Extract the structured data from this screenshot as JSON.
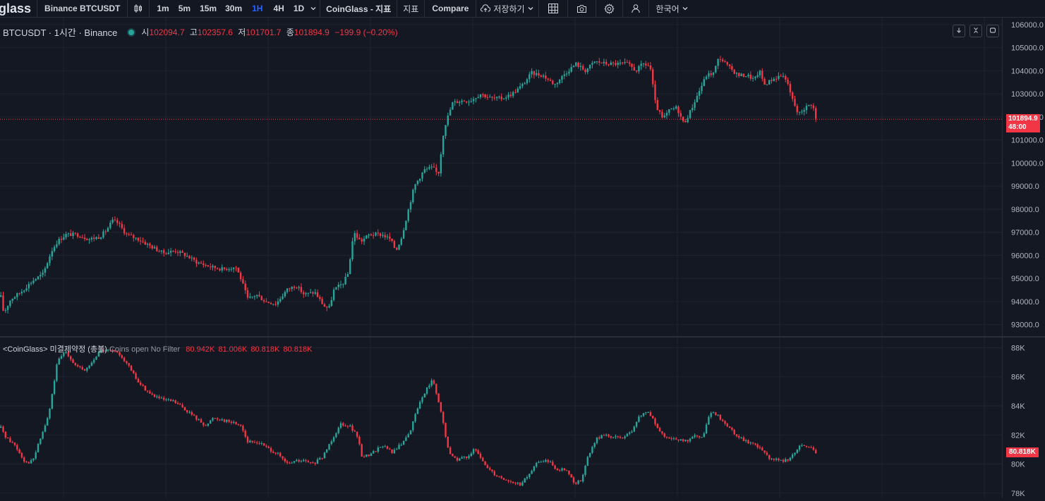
{
  "toolbar": {
    "logo": "glass",
    "symbol": "Binance BTCUSDT",
    "chart_type_icon": "candle-icon",
    "intervals": [
      "1m",
      "5m",
      "15m",
      "30m",
      "1H",
      "4H",
      "1D"
    ],
    "active_interval": "1H",
    "indicator_menu": "CoinGlass - 지표",
    "indicators": "지표",
    "compare": "Compare",
    "save": "저장하기",
    "language": "한국어"
  },
  "price_pane": {
    "symbol_title": "BTCUSDT · 1시간 · Binance",
    "open_label": "시",
    "open": "102094.7",
    "high_label": "고",
    "high": "102357.6",
    "low_label": "저",
    "low": "101701.7",
    "close_label": "종",
    "close": "101894.9",
    "change": "−199.9 (−0.20%)",
    "last_price_tag": "101894.9",
    "countdown_tag": "48:00"
  },
  "oi_pane": {
    "name": "<CoinGlass> 미결제약정 (총볼)",
    "filter": "Coins open No Filter",
    "values": [
      "80.942K",
      "81.006K",
      "80.818K",
      "80.818K"
    ],
    "last_tag": "80.818K"
  },
  "colors": {
    "up": "#26a69a",
    "down": "#f23645",
    "background": "#141823",
    "grid": "#1f2330",
    "accent": "#2962ff"
  },
  "chart_data": [
    {
      "type": "candlestick",
      "title": "BTCUSDT · 1시간 · Binance",
      "ylim": [
        92500,
        106300
      ],
      "y_ticks": [
        93000,
        94000,
        95000,
        96000,
        97000,
        98000,
        99000,
        100000,
        101000,
        102000,
        103000,
        104000,
        105000,
        106000
      ],
      "y_tick_labels": [
        "93000.0",
        "94000.0",
        "95000.0",
        "96000.0",
        "97000.0",
        "98000.0",
        "99000.0",
        "100000.0",
        "101000.0",
        "102000.0",
        "103000.0",
        "104000.0",
        "105000.0",
        "106000.0"
      ],
      "last_price": 101894.9,
      "grid": true,
      "close_path": [
        [
          0,
          94200
        ],
        [
          4,
          93500
        ],
        [
          14,
          94100
        ],
        [
          28,
          94400
        ],
        [
          45,
          94900
        ],
        [
          60,
          95200
        ],
        [
          72,
          96200
        ],
        [
          80,
          96600
        ],
        [
          92,
          96900
        ],
        [
          108,
          96900
        ],
        [
          125,
          96700
        ],
        [
          140,
          96800
        ],
        [
          150,
          97100
        ],
        [
          158,
          97500
        ],
        [
          166,
          97400
        ],
        [
          178,
          96900
        ],
        [
          195,
          96700
        ],
        [
          212,
          96400
        ],
        [
          230,
          96100
        ],
        [
          248,
          96200
        ],
        [
          262,
          96000
        ],
        [
          278,
          95700
        ],
        [
          298,
          95500
        ],
        [
          315,
          95400
        ],
        [
          333,
          95500
        ],
        [
          340,
          95000
        ],
        [
          350,
          94100
        ],
        [
          362,
          94300
        ],
        [
          375,
          94000
        ],
        [
          390,
          93900
        ],
        [
          405,
          94500
        ],
        [
          418,
          94700
        ],
        [
          430,
          94300
        ],
        [
          445,
          94400
        ],
        [
          458,
          93800
        ],
        [
          465,
          93700
        ],
        [
          472,
          94500
        ],
        [
          485,
          94800
        ],
        [
          492,
          95200
        ],
        [
          500,
          97000
        ],
        [
          510,
          96600
        ],
        [
          522,
          96900
        ],
        [
          540,
          96900
        ],
        [
          552,
          96700
        ],
        [
          560,
          96200
        ],
        [
          568,
          96800
        ],
        [
          576,
          97800
        ],
        [
          586,
          99000
        ],
        [
          600,
          99700
        ],
        [
          612,
          99800
        ],
        [
          620,
          99500
        ],
        [
          628,
          101500
        ],
        [
          640,
          102600
        ],
        [
          652,
          102700
        ],
        [
          665,
          102700
        ],
        [
          680,
          103000
        ],
        [
          695,
          102800
        ],
        [
          710,
          102800
        ],
        [
          725,
          103000
        ],
        [
          740,
          103400
        ],
        [
          752,
          103900
        ],
        [
          768,
          103800
        ],
        [
          785,
          103400
        ],
        [
          800,
          103900
        ],
        [
          815,
          104300
        ],
        [
          828,
          104000
        ],
        [
          842,
          104400
        ],
        [
          858,
          104300
        ],
        [
          872,
          104300
        ],
        [
          888,
          104300
        ],
        [
          900,
          104000
        ],
        [
          910,
          104300
        ],
        [
          920,
          104200
        ],
        [
          928,
          102500
        ],
        [
          938,
          101900
        ],
        [
          948,
          102300
        ],
        [
          958,
          102400
        ],
        [
          968,
          101700
        ],
        [
          978,
          102300
        ],
        [
          988,
          103000
        ],
        [
          1000,
          103800
        ],
        [
          1010,
          103900
        ],
        [
          1018,
          104600
        ],
        [
          1030,
          104200
        ],
        [
          1045,
          103800
        ],
        [
          1058,
          103800
        ],
        [
          1068,
          103600
        ],
        [
          1075,
          104000
        ],
        [
          1082,
          103400
        ],
        [
          1092,
          103600
        ],
        [
          1105,
          103800
        ],
        [
          1112,
          103700
        ],
        [
          1120,
          102900
        ],
        [
          1130,
          102100
        ],
        [
          1140,
          102400
        ],
        [
          1150,
          102600
        ],
        [
          1155,
          101900
        ]
      ]
    },
    {
      "type": "candlestick",
      "title": "<CoinGlass> 미결제약정 (총볼)",
      "ylim": [
        77700,
        88700
      ],
      "y_ticks": [
        78000,
        80000,
        82000,
        84000,
        86000,
        88000
      ],
      "y_tick_labels": [
        "78K",
        "80K",
        "82K",
        "84K",
        "86K",
        "88K"
      ],
      "last_value": 80818,
      "grid": true,
      "close_path": [
        [
          0,
          82500
        ],
        [
          8,
          81800
        ],
        [
          20,
          81300
        ],
        [
          35,
          80100
        ],
        [
          45,
          80200
        ],
        [
          55,
          81600
        ],
        [
          68,
          83400
        ],
        [
          80,
          87000
        ],
        [
          92,
          87800
        ],
        [
          105,
          86800
        ],
        [
          118,
          86400
        ],
        [
          128,
          86900
        ],
        [
          140,
          87800
        ],
        [
          155,
          87800
        ],
        [
          170,
          87500
        ],
        [
          180,
          86800
        ],
        [
          195,
          85600
        ],
        [
          212,
          84800
        ],
        [
          230,
          84400
        ],
        [
          245,
          84300
        ],
        [
          260,
          83800
        ],
        [
          278,
          83100
        ],
        [
          292,
          82600
        ],
        [
          300,
          83200
        ],
        [
          310,
          83100
        ],
        [
          325,
          82900
        ],
        [
          340,
          82700
        ],
        [
          350,
          81500
        ],
        [
          365,
          81500
        ],
        [
          378,
          81100
        ],
        [
          392,
          80700
        ],
        [
          405,
          80000
        ],
        [
          418,
          80200
        ],
        [
          430,
          80200
        ],
        [
          442,
          80000
        ],
        [
          455,
          80400
        ],
        [
          468,
          81600
        ],
        [
          482,
          82800
        ],
        [
          495,
          82600
        ],
        [
          505,
          81900
        ],
        [
          512,
          80500
        ],
        [
          525,
          80700
        ],
        [
          540,
          81300
        ],
        [
          555,
          80800
        ],
        [
          570,
          81500
        ],
        [
          582,
          82500
        ],
        [
          590,
          83800
        ],
        [
          600,
          84900
        ],
        [
          612,
          85800
        ],
        [
          625,
          83300
        ],
        [
          635,
          80700
        ],
        [
          648,
          80300
        ],
        [
          660,
          80500
        ],
        [
          672,
          81000
        ],
        [
          685,
          80000
        ],
        [
          700,
          79300
        ],
        [
          712,
          79000
        ],
        [
          725,
          78700
        ],
        [
          738,
          78600
        ],
        [
          750,
          79400
        ],
        [
          762,
          80200
        ],
        [
          775,
          80200
        ],
        [
          790,
          79600
        ],
        [
          800,
          79700
        ],
        [
          812,
          78700
        ],
        [
          822,
          78800
        ],
        [
          832,
          80500
        ],
        [
          845,
          81800
        ],
        [
          858,
          82000
        ],
        [
          870,
          81800
        ],
        [
          885,
          81900
        ],
        [
          895,
          82200
        ],
        [
          905,
          83300
        ],
        [
          918,
          83600
        ],
        [
          930,
          82500
        ],
        [
          942,
          81700
        ],
        [
          955,
          81800
        ],
        [
          968,
          81500
        ],
        [
          982,
          81900
        ],
        [
          995,
          81800
        ],
        [
          1005,
          83500
        ],
        [
          1015,
          83400
        ],
        [
          1028,
          82700
        ],
        [
          1040,
          82100
        ],
        [
          1055,
          81600
        ],
        [
          1068,
          81300
        ],
        [
          1080,
          81000
        ],
        [
          1090,
          80400
        ],
        [
          1105,
          80200
        ],
        [
          1120,
          80400
        ],
        [
          1130,
          81200
        ],
        [
          1140,
          81300
        ],
        [
          1150,
          81000
        ],
        [
          1155,
          80818
        ]
      ]
    }
  ]
}
